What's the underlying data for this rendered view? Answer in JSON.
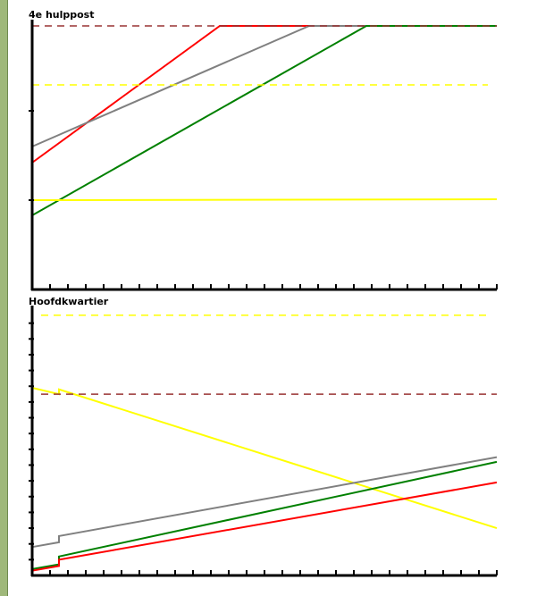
{
  "chart_data": [
    {
      "type": "line",
      "title": "4e hulppost",
      "xlabel": "",
      "ylabel": "",
      "xlim": [
        0,
        26
      ],
      "ylim": [
        0,
        3
      ],
      "grid": false,
      "legend": "none",
      "series": [
        {
          "color": "#ff0000",
          "style": "solid",
          "x": [
            0,
            10.5,
            26
          ],
          "y": [
            1.42,
            2.95,
            2.95
          ]
        },
        {
          "color": "#808080",
          "style": "solid",
          "x": [
            0,
            15.5,
            26
          ],
          "y": [
            1.6,
            2.95,
            2.95
          ]
        },
        {
          "color": "#008000",
          "style": "solid",
          "x": [
            0,
            18.7,
            26
          ],
          "y": [
            0.83,
            2.95,
            2.95
          ]
        },
        {
          "color": "#ffff00",
          "style": "solid",
          "x": [
            0,
            26
          ],
          "y": [
            1.0,
            1.01
          ]
        },
        {
          "color": "#ffff00",
          "style": "dashed",
          "x": [
            0,
            25.5
          ],
          "y": [
            2.29,
            2.29
          ]
        },
        {
          "color": "#993333",
          "style": "dashed",
          "x": [
            0,
            26
          ],
          "y": [
            2.95,
            2.95
          ]
        }
      ]
    },
    {
      "type": "line",
      "title": "Hoofdkwartier",
      "xlabel": "",
      "ylabel": "",
      "xlim": [
        0,
        26
      ],
      "ylim": [
        0,
        17
      ],
      "grid": false,
      "legend": "none",
      "series": [
        {
          "color": "#ffff00",
          "style": "solid",
          "x": [
            0,
            1.5,
            1.5,
            26
          ],
          "y": [
            11.9,
            11.5,
            11.8,
            3.0
          ]
        },
        {
          "color": "#808080",
          "style": "solid",
          "x": [
            0,
            1.5,
            1.5,
            26
          ],
          "y": [
            1.8,
            2.1,
            2.5,
            7.5
          ]
        },
        {
          "color": "#008000",
          "style": "solid",
          "x": [
            0,
            1.5,
            1.5,
            26
          ],
          "y": [
            0.4,
            0.7,
            1.2,
            7.2
          ]
        },
        {
          "color": "#ff0000",
          "style": "solid",
          "x": [
            0,
            1.5,
            1.5,
            26
          ],
          "y": [
            0.3,
            0.6,
            1.0,
            5.9
          ]
        },
        {
          "color": "#993333",
          "style": "dashed",
          "x": [
            0.5,
            26
          ],
          "y": [
            11.5,
            11.5
          ]
        },
        {
          "color": "#ffff00",
          "style": "dashed",
          "x": [
            0.5,
            25.5
          ],
          "y": [
            16.5,
            16.5
          ]
        }
      ]
    }
  ]
}
